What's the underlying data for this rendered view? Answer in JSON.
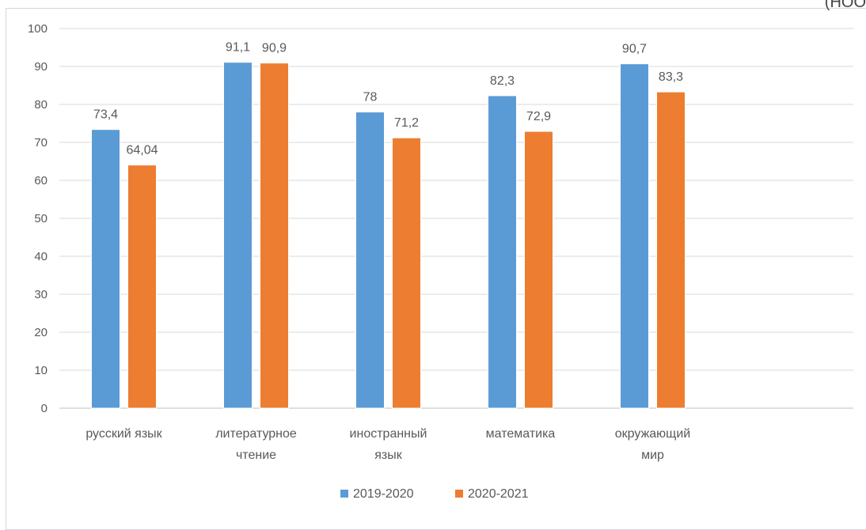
{
  "corner_text": "(НОО",
  "chart_data": {
    "type": "bar",
    "categories": [
      [
        "русский язык"
      ],
      [
        "литературное",
        "чтение"
      ],
      [
        "иностранный",
        "язык"
      ],
      [
        "математика"
      ],
      [
        "окружающий",
        "мир"
      ]
    ],
    "series": [
      {
        "name": "2019-2020",
        "color": "#5b9bd5",
        "values": [
          73.4,
          91.1,
          78,
          82.3,
          90.7
        ],
        "labels": [
          "73,4",
          "91,1",
          "78",
          "82,3",
          "90,7"
        ]
      },
      {
        "name": "2020-2021",
        "color": "#ed7d31",
        "values": [
          64.04,
          90.9,
          71.2,
          72.9,
          83.3
        ],
        "labels": [
          "64,04",
          "90,9",
          "71,2",
          "72,9",
          "83,3"
        ]
      }
    ],
    "ylim": [
      0,
      100
    ],
    "yticks": [
      0,
      10,
      20,
      30,
      40,
      50,
      60,
      70,
      80,
      90,
      100
    ],
    "grid": true,
    "legend": "bottom",
    "xlabel": "",
    "ylabel": "",
    "title": ""
  }
}
